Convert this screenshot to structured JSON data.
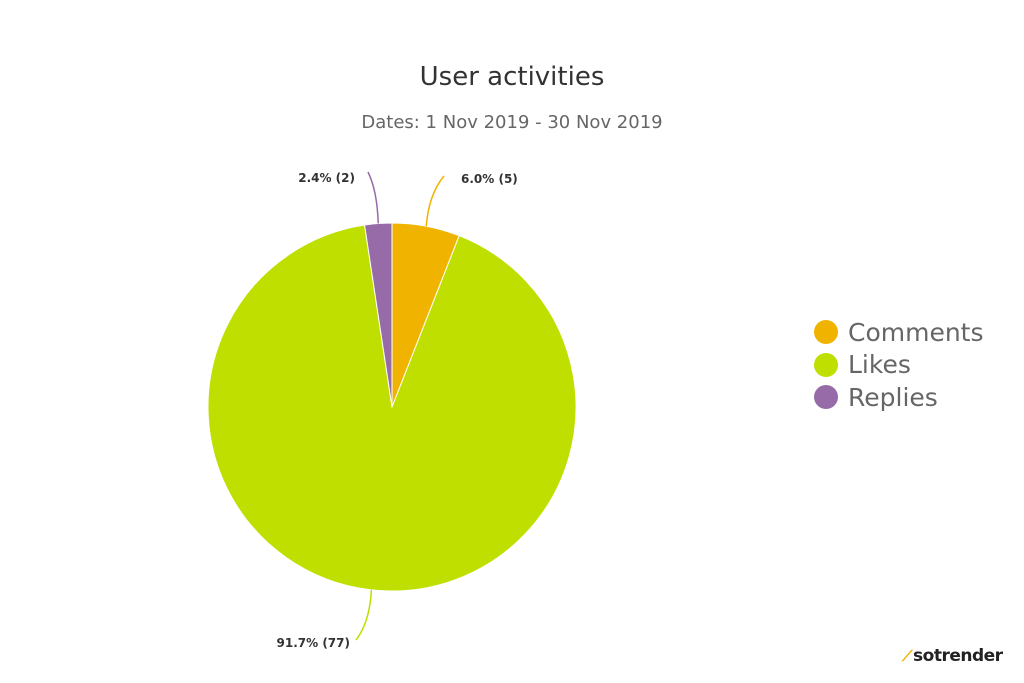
{
  "chart_data": {
    "type": "pie",
    "title": "User activities",
    "subtitle": "Dates: 1 Nov 2019 - 30 Nov 2019",
    "slices": [
      {
        "name": "Comments",
        "value": 5,
        "percent": 6.0,
        "label": "6.0% (5)",
        "color": "#f0b400"
      },
      {
        "name": "Likes",
        "value": 77,
        "percent": 91.7,
        "label": "91.7% (77)",
        "color": "#bedf00"
      },
      {
        "name": "Replies",
        "value": 2,
        "percent": 2.4,
        "label": "2.4% (2)",
        "color": "#976ba7"
      }
    ],
    "legend_position": "right"
  },
  "brand": {
    "logo": "sotrender"
  }
}
